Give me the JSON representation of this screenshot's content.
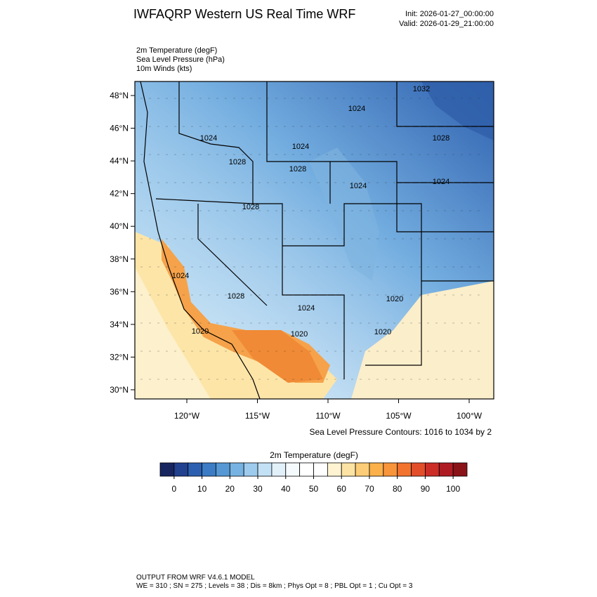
{
  "header": {
    "title": "IWFAQRP Western US Real Time WRF",
    "init": "Init: 2026-01-27_00:00:00",
    "valid": "Valid: 2026-01-29_21:00:00"
  },
  "fields": [
    "2m Temperature   (degF)",
    "Sea Level Pressure   (hPa)",
    "10m Winds   (kts)"
  ],
  "map": {
    "lat_labels": [
      "48°N",
      "46°N",
      "44°N",
      "42°N",
      "40°N",
      "38°N",
      "36°N",
      "34°N",
      "32°N",
      "30°N"
    ],
    "lon_labels": [
      "120°W",
      "115°W",
      "110°W",
      "105°W",
      "100°W"
    ],
    "contour_labels": [
      "1032",
      "1024",
      "1024",
      "1024",
      "1028",
      "1028",
      "1028",
      "1024",
      "1024",
      "1028",
      "1024",
      "1028",
      "1024",
      "1020",
      "1020",
      "1020",
      "1020"
    ],
    "contour_note": "Sea Level Pressure Contours: 1016 to 1034 by 2"
  },
  "colorbar": {
    "title": "2m Temperature  (degF)",
    "ticks": [
      0,
      10,
      20,
      30,
      40,
      50,
      60,
      70,
      80,
      90,
      100
    ],
    "colors": [
      "#17265f",
      "#22418f",
      "#2c5faf",
      "#3b7cc4",
      "#5598d4",
      "#77b3e2",
      "#9dcbee",
      "#c3e1f5",
      "#e2f0fa",
      "#f5fafd",
      "#ffffff",
      "#ffffff",
      "#fff3d2",
      "#fde3a3",
      "#fccd76",
      "#fbb04a",
      "#f8943a",
      "#f2732e",
      "#e34e2a",
      "#cc2d27",
      "#ae1b22",
      "#8a1318"
    ]
  },
  "footer": {
    "model": "OUTPUT FROM WRF V4.6.1 MODEL",
    "settings": "WE = 310 ; SN = 275 ; Levels = 38 ; Dis = 8km ; Phys Opt = 8 ; PBL Opt = 1 ; Cu Opt = 3"
  }
}
